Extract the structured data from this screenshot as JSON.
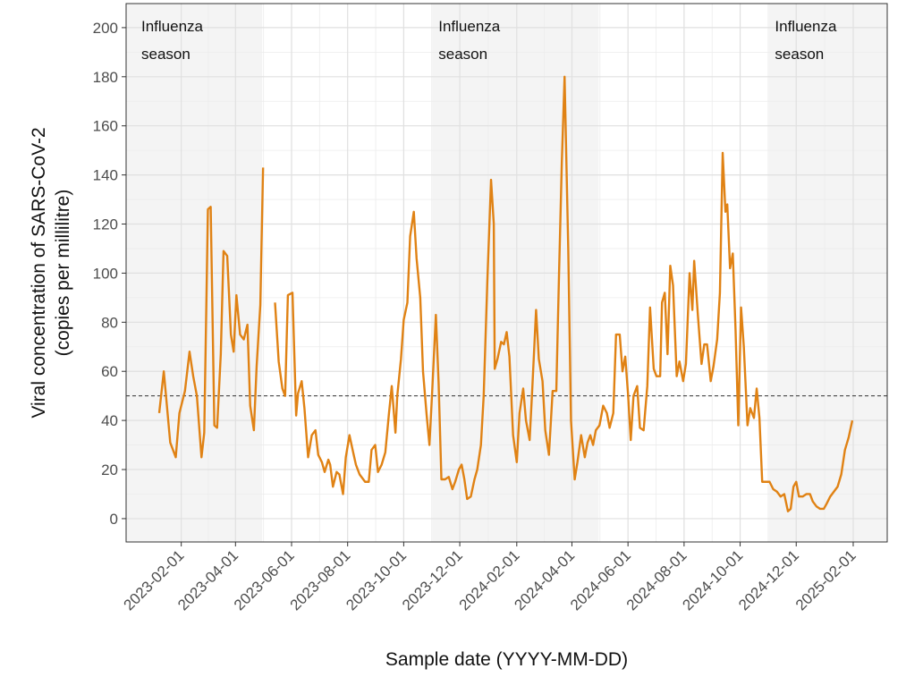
{
  "chart_data": {
    "type": "line",
    "x_label": "Sample date (YYYY-MM-DD)",
    "y_label": [
      "Viral concentration of SARS-CoV-2",
      "(copies per millilitre)"
    ],
    "x": [
      "2023-01-08",
      "2023-01-13",
      "2023-01-20",
      "2023-01-26",
      "2023-01-30",
      "2023-02-05",
      "2023-02-10",
      "2023-02-14",
      "2023-02-18",
      "2023-02-23",
      "2023-02-26",
      "2023-03-02",
      "2023-03-05",
      "2023-03-09",
      "2023-03-12",
      "2023-03-16",
      "2023-03-19",
      "2023-03-23",
      "2023-03-27",
      "2023-03-30",
      "2023-04-02",
      "2023-04-06",
      "2023-04-10",
      "2023-04-14",
      "2023-04-17",
      "2023-04-21",
      "2023-04-24",
      "2023-04-28",
      "2023-05-01",
      "2023-05-07",
      "2023-05-14",
      "2023-05-18",
      "2023-05-22",
      "2023-05-25",
      "2023-05-28",
      "2023-06-02",
      "2023-06-06",
      "2023-06-08",
      "2023-06-12",
      "2023-06-15",
      "2023-06-19",
      "2023-06-23",
      "2023-06-27",
      "2023-06-30",
      "2023-07-04",
      "2023-07-07",
      "2023-07-11",
      "2023-07-13",
      "2023-07-16",
      "2023-07-20",
      "2023-07-23",
      "2023-07-27",
      "2023-07-30",
      "2023-08-03",
      "2023-08-07",
      "2023-08-10",
      "2023-08-14",
      "2023-08-18",
      "2023-08-20",
      "2023-08-24",
      "2023-08-27",
      "2023-08-31",
      "2023-09-03",
      "2023-09-07",
      "2023-09-11",
      "2023-09-15",
      "2023-09-18",
      "2023-09-22",
      "2023-09-24",
      "2023-09-28",
      "2023-10-01",
      "2023-10-05",
      "2023-10-08",
      "2023-10-12",
      "2023-10-15",
      "2023-10-19",
      "2023-10-22",
      "2023-10-26",
      "2023-10-29",
      "2023-11-01",
      "2023-11-05",
      "2023-11-08",
      "2023-11-11",
      "2023-11-15",
      "2023-11-19",
      "2023-11-23",
      "2023-11-26",
      "2023-11-30",
      "2023-12-03",
      "2023-12-06",
      "2023-12-09",
      "2023-12-13",
      "2023-12-17",
      "2023-12-20",
      "2023-12-24",
      "2023-12-27",
      "2023-12-31",
      "2024-01-04",
      "2024-01-07",
      "2024-01-08",
      "2024-01-11",
      "2024-01-15",
      "2024-01-18",
      "2024-01-21",
      "2024-01-24",
      "2024-01-28",
      "2024-02-01",
      "2024-02-04",
      "2024-02-08",
      "2024-02-11",
      "2024-02-15",
      "2024-02-18",
      "2024-02-22",
      "2024-02-25",
      "2024-02-29",
      "2024-03-03",
      "2024-03-07",
      "2024-03-11",
      "2024-03-15",
      "2024-03-18",
      "2024-03-21",
      "2024-03-24",
      "2024-03-28",
      "2024-03-31",
      "2024-04-04",
      "2024-04-07",
      "2024-04-11",
      "2024-04-15",
      "2024-04-18",
      "2024-04-21",
      "2024-04-24",
      "2024-04-27",
      "2024-05-01",
      "2024-05-05",
      "2024-05-09",
      "2024-05-12",
      "2024-05-16",
      "2024-05-19",
      "2024-05-23",
      "2024-05-26",
      "2024-05-29",
      "2024-06-01",
      "2024-06-04",
      "2024-06-07",
      "2024-06-11",
      "2024-06-14",
      "2024-06-18",
      "2024-06-22",
      "2024-06-25",
      "2024-06-29",
      "2024-07-02",
      "2024-07-06",
      "2024-07-08",
      "2024-07-11",
      "2024-07-14",
      "2024-07-17",
      "2024-07-20",
      "2024-07-24",
      "2024-07-27",
      "2024-07-31",
      "2024-08-03",
      "2024-08-07",
      "2024-08-10",
      "2024-08-12",
      "2024-08-16",
      "2024-08-20",
      "2024-08-23",
      "2024-08-26",
      "2024-08-30",
      "2024-09-02",
      "2024-09-06",
      "2024-09-09",
      "2024-09-12",
      "2024-09-15",
      "2024-09-17",
      "2024-09-20",
      "2024-09-23",
      "2024-09-26",
      "2024-09-29",
      "2024-10-02",
      "2024-10-05",
      "2024-10-09",
      "2024-10-12",
      "2024-10-16",
      "2024-10-19",
      "2024-10-22",
      "2024-10-25",
      "2024-10-29",
      "2024-11-02",
      "2024-11-06",
      "2024-11-10",
      "2024-11-14",
      "2024-11-18",
      "2024-11-22",
      "2024-11-25",
      "2024-11-28",
      "2024-12-01",
      "2024-12-04",
      "2024-12-08",
      "2024-12-12",
      "2024-12-16",
      "2024-12-19",
      "2024-12-23",
      "2024-12-27",
      "2024-12-31",
      "2025-01-03",
      "2025-01-07",
      "2025-01-11",
      "2025-01-15",
      "2025-01-19",
      "2025-01-23",
      "2025-01-27",
      "2025-01-31"
    ],
    "series": [
      {
        "color": "#e08214",
        "values": [
          43,
          60,
          31,
          25,
          43,
          52,
          68,
          58,
          50,
          25,
          35,
          126,
          127,
          38,
          37,
          67,
          109,
          107,
          75,
          68,
          91,
          75,
          73,
          79,
          46,
          36,
          62,
          87,
          143,
          null,
          88,
          64,
          53,
          50,
          91,
          92,
          42,
          51,
          56,
          45,
          25,
          34,
          36,
          26,
          23,
          19,
          24,
          22,
          13,
          19,
          18,
          10,
          25,
          34,
          27,
          22,
          18,
          16,
          15,
          15,
          28,
          30,
          19,
          22,
          27,
          43,
          54,
          35,
          50,
          65,
          81,
          88,
          115,
          125,
          106,
          90,
          60,
          42,
          30,
          52,
          83,
          55,
          16,
          16,
          17,
          12,
          15,
          20,
          22,
          16,
          8,
          9,
          16,
          20,
          30,
          50,
          97,
          138,
          120,
          61,
          65,
          72,
          71,
          76,
          66,
          34,
          23,
          43,
          53,
          40,
          32,
          54,
          85,
          65,
          56,
          36,
          26,
          52,
          52,
          100,
          145,
          180,
          110,
          40,
          16,
          23,
          34,
          25,
          31,
          34,
          30,
          36,
          38,
          46,
          43,
          37,
          43,
          75,
          75,
          60,
          66,
          51,
          32,
          50,
          54,
          37,
          36,
          54,
          86,
          61,
          58,
          58,
          88,
          92,
          67,
          103,
          95,
          58,
          64,
          56,
          63,
          100,
          85,
          105,
          83,
          63,
          71,
          71,
          56,
          62,
          73,
          92,
          149,
          125,
          128,
          102,
          108,
          77,
          38,
          86,
          70,
          38,
          45,
          41,
          53,
          41,
          15,
          15,
          15,
          12,
          11,
          9,
          10,
          3,
          4,
          13,
          15,
          9,
          9,
          10,
          10,
          7,
          5,
          4,
          4,
          6,
          9,
          11,
          13,
          18,
          28,
          33,
          40
        ]
      }
    ],
    "xlim": [
      "2022-12-03",
      "2025-03-10"
    ],
    "ylim": [
      -9.5,
      209.8
    ],
    "yticks": [
      0,
      20,
      40,
      60,
      80,
      100,
      120,
      140,
      160,
      180,
      200
    ],
    "xticks": [
      "2023-02-01",
      "2023-04-01",
      "2023-06-01",
      "2023-08-01",
      "2023-10-01",
      "2023-12-01",
      "2024-02-01",
      "2024-04-01",
      "2024-06-01",
      "2024-08-01",
      "2024-10-01",
      "2024-12-01",
      "2025-02-01"
    ],
    "threshold": 50,
    "shaded_periods": [
      {
        "start": "2022-11-01",
        "end": "2023-04-30",
        "label": [
          "Influenza",
          "season"
        ]
      },
      {
        "start": "2023-11-01",
        "end": "2024-04-30",
        "label": [
          "Influenza",
          "season"
        ]
      },
      {
        "start": "2024-11-01",
        "end": "2025-04-30",
        "label": [
          "Influenza",
          "season"
        ]
      }
    ],
    "grid": true
  }
}
